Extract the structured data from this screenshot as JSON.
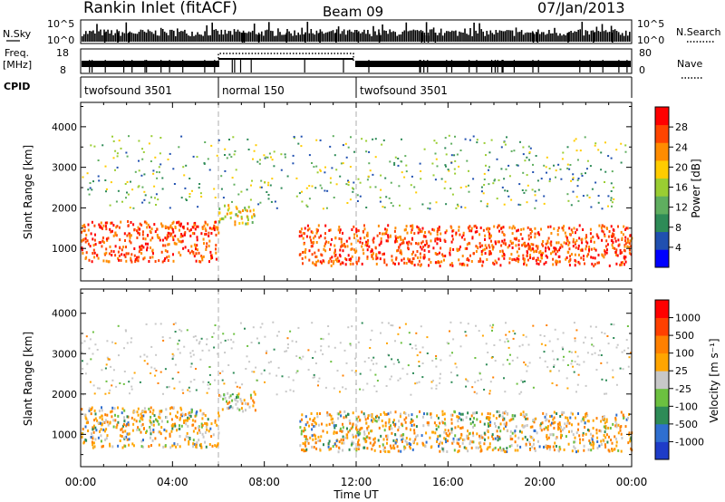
{
  "header": {
    "title": "Rankin Inlet (fitACF)",
    "beam": "Beam 09",
    "date": "07/Jan/2013"
  },
  "strip_panels": {
    "nsky_label": "N.Sky",
    "nsearch_label": "N.Search",
    "nsky_ticks": [
      "10^5",
      "10^0"
    ],
    "freq_label_1": "Freq.",
    "freq_label_2": "[MHz]",
    "freq_ticks": [
      "18",
      "8"
    ],
    "nave_label": "Nave",
    "nave_ticks": [
      "80",
      "0"
    ],
    "cpid_label": "CPID"
  },
  "cpid_segments": [
    {
      "label": "twofsound 3501",
      "start_hour": 0,
      "end_hour": 6
    },
    {
      "label": "normal 150",
      "start_hour": 6,
      "end_hour": 12
    },
    {
      "label": "twofsound 3501",
      "start_hour": 12,
      "end_hour": 24
    }
  ],
  "colors": {
    "power_scale": [
      "#0000ff",
      "#2050b0",
      "#2e8b57",
      "#5fae5f",
      "#9acd32",
      "#ffcc00",
      "#ff8c00",
      "#ff4500",
      "#ff0000"
    ],
    "velocity_scale": [
      "#1e3cc8",
      "#2f6fd0",
      "#2e8b57",
      "#6cc040",
      "#c8c8c8",
      "#ffa500",
      "#ff8000",
      "#ff4000",
      "#ff0000"
    ]
  },
  "chart_data": [
    {
      "type": "heatmap",
      "name": "power",
      "ylabel": "Slant Range [km]",
      "xlabel": "",
      "xlim": [
        0,
        24
      ],
      "ylim": [
        200,
        4600
      ],
      "yticks": [
        "4000",
        "3000",
        "2000",
        "1000"
      ],
      "yticks_values": [
        4000,
        3000,
        2000,
        1000
      ],
      "colorbar": {
        "label": "Power [dB]",
        "range": [
          0,
          32
        ],
        "ticks": [
          "28",
          "24",
          "20",
          "16",
          "12",
          "8",
          "4"
        ],
        "tick_values": [
          28,
          24,
          20,
          16,
          12,
          8,
          4
        ]
      },
      "regions": [
        {
          "t0": 0,
          "t1": 6,
          "r0": 700,
          "r1": 1700,
          "level": "high"
        },
        {
          "t0": 6,
          "t1": 7.6,
          "r0": 1600,
          "r1": 2100,
          "level": "mid"
        },
        {
          "t0": 9.5,
          "t1": 24,
          "r0": 600,
          "r1": 1600,
          "level": "high"
        },
        {
          "t0": 0,
          "t1": 24,
          "r0": 2000,
          "r1": 3800,
          "level": "low"
        }
      ]
    },
    {
      "type": "heatmap",
      "name": "velocity",
      "ylabel": "Slant Range [km]",
      "xlabel": "Time UT",
      "xlim": [
        0,
        24
      ],
      "ylim": [
        200,
        4600
      ],
      "xticks": [
        "00:00",
        "04:00",
        "08:00",
        "12:00",
        "16:00",
        "20:00",
        "00:00"
      ],
      "xticks_values": [
        0,
        4,
        8,
        12,
        16,
        20,
        24
      ],
      "yticks": [
        "4000",
        "3000",
        "2000",
        "1000"
      ],
      "yticks_values": [
        4000,
        3000,
        2000,
        1000
      ],
      "colorbar": {
        "label": "Velocity [m s⁻¹]",
        "ticks": [
          "1000",
          "500",
          "100",
          "25",
          "-25",
          "-100",
          "-500",
          "-1000"
        ]
      }
    }
  ]
}
